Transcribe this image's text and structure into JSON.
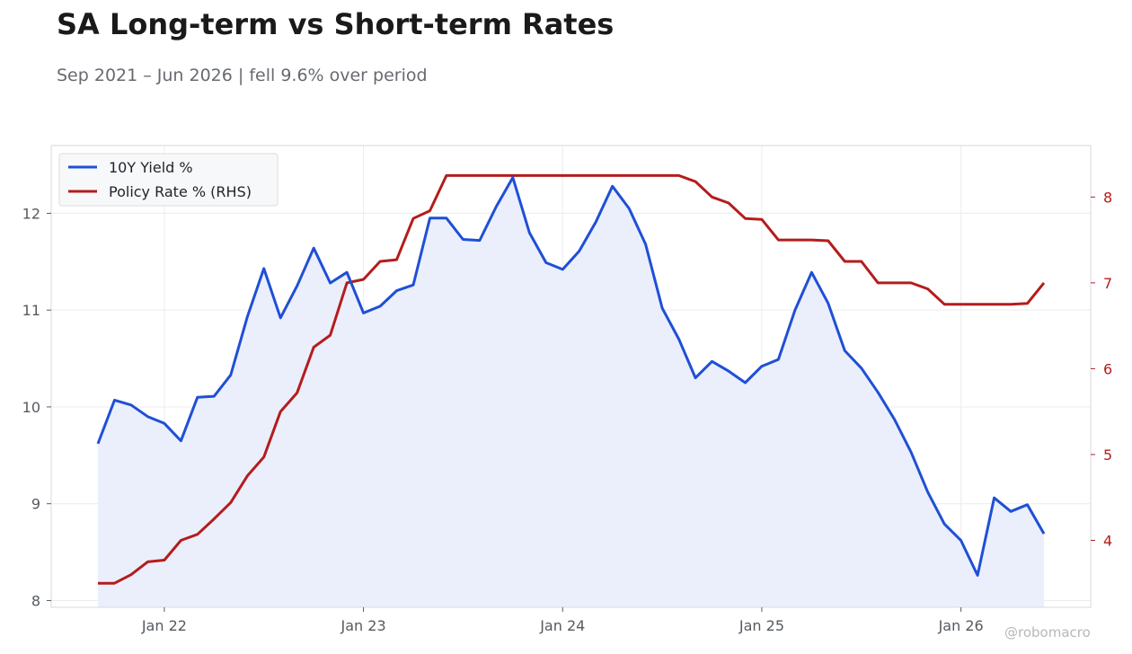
{
  "header": {
    "title": "SA Long-term vs Short-term Rates",
    "subtitle": "Sep 2021 – Jun 2026 | fell 9.6% over period"
  },
  "watermark": "@robomacro",
  "colors": {
    "yield": "#1f4fd6",
    "policy": "#b51c1c",
    "fill": "#eaeffb",
    "grid": "#ececf0",
    "frame": "#d8d8dc"
  },
  "chart_data": {
    "type": "line",
    "grid": true,
    "legend_position": "top-left",
    "x_ticks": [
      "Jan 22",
      "Jan 23",
      "Jan 24",
      "Jan 25",
      "Jan 26"
    ],
    "y_left": {
      "lim": [
        7.93,
        12.7
      ],
      "ticks": [
        8,
        9,
        10,
        11,
        12
      ]
    },
    "y_right": {
      "lim": [
        3.22,
        8.6
      ],
      "ticks": [
        4,
        5,
        6,
        7,
        8
      ]
    },
    "x_dates": [
      "2021-09",
      "2021-10",
      "2021-11",
      "2021-12",
      "2022-01",
      "2022-02",
      "2022-03",
      "2022-04",
      "2022-05",
      "2022-06",
      "2022-07",
      "2022-08",
      "2022-09",
      "2022-10",
      "2022-11",
      "2022-12",
      "2023-01",
      "2023-02",
      "2023-03",
      "2023-04",
      "2023-05",
      "2023-06",
      "2023-07",
      "2023-08",
      "2023-09",
      "2023-10",
      "2023-11",
      "2023-12",
      "2024-01",
      "2024-02",
      "2024-03",
      "2024-04",
      "2024-05",
      "2024-06",
      "2024-07",
      "2024-08",
      "2024-09",
      "2024-10",
      "2024-11",
      "2024-12",
      "2025-01",
      "2025-02",
      "2025-03",
      "2025-04",
      "2025-05",
      "2025-06",
      "2025-07",
      "2025-08",
      "2025-09",
      "2025-10",
      "2025-11",
      "2025-12",
      "2026-01",
      "2026-02",
      "2026-03",
      "2026-04",
      "2026-05",
      "2026-06"
    ],
    "series": [
      {
        "name": "10Y Yield %",
        "axis": "left",
        "filled": true,
        "values": [
          9.62,
          10.07,
          10.02,
          9.9,
          9.83,
          9.65,
          10.1,
          10.11,
          10.33,
          10.93,
          11.43,
          10.92,
          11.25,
          11.64,
          11.28,
          11.39,
          10.97,
          11.04,
          11.2,
          11.26,
          11.95,
          11.95,
          11.73,
          11.72,
          12.07,
          12.37,
          11.8,
          11.49,
          11.42,
          11.61,
          11.91,
          12.28,
          12.05,
          11.68,
          11.02,
          10.7,
          10.3,
          10.47,
          10.37,
          10.25,
          10.42,
          10.49,
          11.0,
          11.39,
          11.07,
          10.58,
          10.4,
          10.15,
          9.87,
          9.53,
          9.12,
          8.79,
          8.62,
          8.26,
          9.06,
          8.92,
          8.99,
          8.69
        ]
      },
      {
        "name": "Policy Rate % (RHS)",
        "axis": "right",
        "filled": false,
        "values": [
          3.5,
          3.5,
          3.6,
          3.75,
          3.77,
          4.0,
          4.07,
          4.25,
          4.44,
          4.75,
          4.97,
          5.5,
          5.72,
          6.25,
          6.39,
          7.0,
          7.04,
          7.25,
          7.27,
          7.75,
          7.84,
          8.25,
          8.25,
          8.25,
          8.25,
          8.25,
          8.25,
          8.25,
          8.25,
          8.25,
          8.25,
          8.25,
          8.25,
          8.25,
          8.25,
          8.25,
          8.18,
          8.0,
          7.93,
          7.75,
          7.74,
          7.5,
          7.5,
          7.5,
          7.49,
          7.25,
          7.25,
          7.0,
          7.0,
          7.0,
          6.93,
          6.75,
          6.75,
          6.75,
          6.75,
          6.75,
          6.76,
          7.0
        ]
      }
    ]
  }
}
